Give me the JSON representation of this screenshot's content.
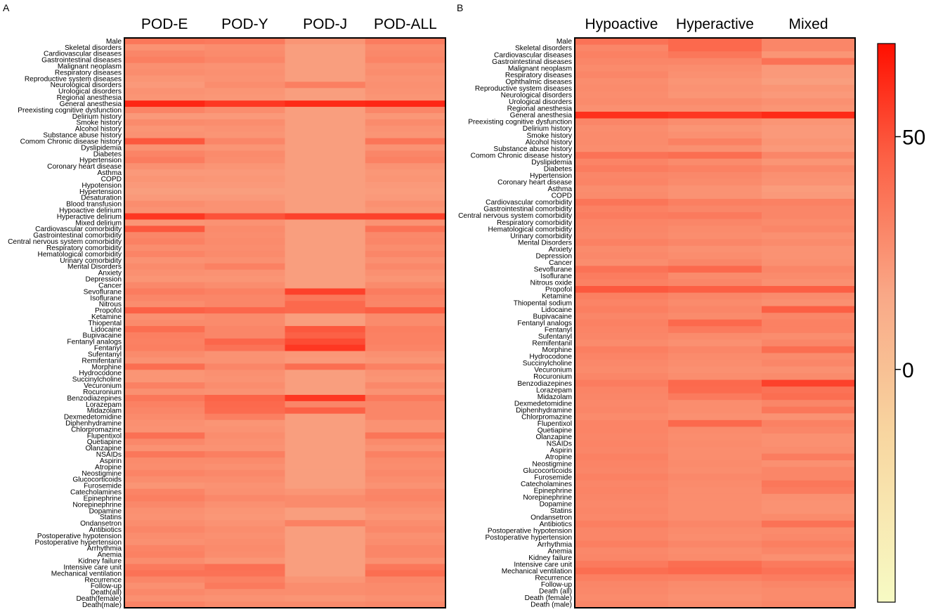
{
  "chart_data": [
    {
      "type": "heatmap",
      "panel_label": "A",
      "columns": [
        "POD-E",
        "POD-Y",
        "POD-J",
        "POD-ALL"
      ],
      "rows": [
        "Male",
        "Skeletal disorders",
        "Cardiovascular diseases",
        "Gastrointestinal diseases",
        "Malignant neoplasm",
        "Respiratory diseases",
        "Reproductive system diseases",
        "Neurological disorders",
        "Urological disorders",
        "Regional anesthesia",
        "General anesthesia",
        "Preexisting cognitive dysfunction",
        "Delirium history",
        "Smoke history",
        "Alcohol history",
        "Substance abuse history",
        "Comom Chronic disease history",
        "Dyslipidemia",
        "Diabetes",
        "Hypertension",
        "Coronary heart disease",
        "Asthma",
        "COPD",
        "Hypotension",
        "Hypertension",
        "Desaturation",
        "Blood transfusion",
        "Hypoactive delirium",
        "Hyperactive delirium",
        "Mixed delirium",
        "Cardiovascular comorbidity",
        "Gastrointestinal comorbidity",
        "Central nervous system comorbidity",
        "Respiratory comorbidity",
        "Hematological comorbidity",
        "Urinary comorbidity",
        "Mental Disorders",
        "Anxiety",
        "Depression",
        "Cancer",
        "Sevoflurane",
        "Isoflurane",
        "Nitrous",
        "Propofol",
        "Ketamine",
        "Thiopental",
        "Lidocaine",
        "Bupivacaine",
        "Fentanyl analogs",
        "Fentanyl",
        "Sufentanyl",
        "Remifentanil",
        "Morphine",
        "Hydrocodone",
        "Succinylcholine",
        "Vecuronium",
        "Rocuronium",
        "Benzodiazepines",
        "Lorazepam",
        "Midazolam",
        "Dexmedetomidine",
        "Diphenhydramine",
        "Chlorpromazine",
        "Flupentixol",
        "Quetiapine",
        "Olanzapine",
        "NSAIDs",
        "Aspirin",
        "Atropine",
        "Neostigmine",
        "Glucocorticoids",
        "Furosemide",
        "Catecholamines",
        "Epinephrine",
        "Norepinephrine",
        "Dopamine",
        "Statins",
        "Ondansetron",
        "Antibiotics",
        "Postoperative hypotension",
        "Postoperative hypertension",
        "Arrhythmia",
        "Anemia",
        "Kidney failure",
        "Intensive care unit",
        "Mechanical ventilation",
        "Recurrence",
        "Follow-up",
        "Death(all)",
        "Death(female)",
        "Death(male)"
      ],
      "values": [
        [
          36,
          35,
          24,
          34
        ],
        [
          25,
          27,
          20,
          28
        ],
        [
          30,
          28,
          20,
          29
        ],
        [
          33,
          30,
          20,
          31
        ],
        [
          26,
          25,
          20,
          26
        ],
        [
          27,
          26,
          20,
          27
        ],
        [
          24,
          25,
          20,
          25
        ],
        [
          22,
          27,
          33,
          26
        ],
        [
          25,
          24,
          20,
          25
        ],
        [
          24,
          23,
          20,
          24
        ],
        [
          63,
          58,
          62,
          63
        ],
        [
          31,
          27,
          20,
          30
        ],
        [
          22,
          22,
          20,
          23
        ],
        [
          28,
          27,
          20,
          28
        ],
        [
          24,
          25,
          20,
          25
        ],
        [
          25,
          24,
          20,
          24
        ],
        [
          48,
          30,
          20,
          37
        ],
        [
          25,
          24,
          20,
          25
        ],
        [
          31,
          28,
          20,
          30
        ],
        [
          34,
          27,
          20,
          32
        ],
        [
          26,
          24,
          20,
          25
        ],
        [
          22,
          22,
          20,
          23
        ],
        [
          24,
          23,
          20,
          24
        ],
        [
          22,
          22,
          20,
          22
        ],
        [
          20,
          20,
          20,
          21
        ],
        [
          22,
          22,
          20,
          22
        ],
        [
          27,
          25,
          20,
          26
        ],
        [
          25,
          25,
          20,
          24
        ],
        [
          58,
          50,
          55,
          55
        ],
        [
          24,
          25,
          20,
          25
        ],
        [
          48,
          28,
          20,
          38
        ],
        [
          30,
          27,
          20,
          29
        ],
        [
          32,
          28,
          20,
          30
        ],
        [
          27,
          27,
          20,
          27
        ],
        [
          31,
          28,
          20,
          30
        ],
        [
          25,
          26,
          20,
          26
        ],
        [
          28,
          32,
          20,
          29
        ],
        [
          26,
          25,
          20,
          26
        ],
        [
          24,
          24,
          20,
          24
        ],
        [
          29,
          27,
          20,
          28
        ],
        [
          34,
          32,
          55,
          34
        ],
        [
          30,
          30,
          36,
          31
        ],
        [
          27,
          30,
          42,
          30
        ],
        [
          45,
          43,
          42,
          46
        ],
        [
          26,
          28,
          20,
          28
        ],
        [
          28,
          28,
          20,
          28
        ],
        [
          40,
          30,
          48,
          33
        ],
        [
          33,
          30,
          45,
          32
        ],
        [
          32,
          43,
          52,
          32
        ],
        [
          33,
          38,
          58,
          31
        ],
        [
          28,
          25,
          23,
          26
        ],
        [
          25,
          25,
          22,
          24
        ],
        [
          40,
          30,
          40,
          32
        ],
        [
          24,
          26,
          20,
          25
        ],
        [
          24,
          25,
          20,
          24
        ],
        [
          32,
          27,
          20,
          29
        ],
        [
          26,
          25,
          20,
          25
        ],
        [
          36,
          44,
          58,
          35
        ],
        [
          32,
          42,
          30,
          30
        ],
        [
          30,
          41,
          45,
          30
        ],
        [
          28,
          33,
          20,
          30
        ],
        [
          26,
          24,
          20,
          25
        ],
        [
          25,
          25,
          20,
          25
        ],
        [
          39,
          27,
          20,
          37
        ],
        [
          29,
          26,
          20,
          28
        ],
        [
          25,
          25,
          20,
          25
        ],
        [
          36,
          33,
          20,
          32
        ],
        [
          28,
          28,
          20,
          28
        ],
        [
          27,
          26,
          20,
          27
        ],
        [
          31,
          29,
          20,
          29
        ],
        [
          27,
          27,
          20,
          27
        ],
        [
          24,
          25,
          20,
          25
        ],
        [
          31,
          26,
          24,
          30
        ],
        [
          33,
          29,
          28,
          31
        ],
        [
          29,
          26,
          28,
          28
        ],
        [
          26,
          24,
          20,
          26
        ],
        [
          25,
          23,
          20,
          24
        ],
        [
          27,
          25,
          32,
          27
        ],
        [
          30,
          27,
          20,
          29
        ],
        [
          27,
          26,
          20,
          26
        ],
        [
          26,
          27,
          20,
          27
        ],
        [
          31,
          28,
          20,
          30
        ],
        [
          32,
          27,
          20,
          30
        ],
        [
          27,
          24,
          20,
          26
        ],
        [
          35,
          39,
          20,
          36
        ],
        [
          38,
          38,
          20,
          40
        ],
        [
          30,
          32,
          24,
          30
        ],
        [
          26,
          35,
          27,
          28
        ],
        [
          29,
          27,
          27,
          28
        ],
        [
          26,
          25,
          24,
          26
        ],
        [
          31,
          28,
          28,
          29
        ]
      ]
    },
    {
      "type": "heatmap",
      "panel_label": "B",
      "columns": [
        "Hypoactive",
        "Hyperactive",
        "Mixed"
      ],
      "rows": [
        "Male",
        "Skeletal disorders",
        "Cardiovascular diseases",
        "Gastrointestinal diseases",
        "Malignant neoplasm",
        "Respiratory diseases",
        "Ophthalmic diseases",
        "Reproductive system diseases",
        "Neurological disorders",
        "Urological disorders",
        "Regional anesthesia",
        "General anesthesia",
        "Preexisting cognitive dysfunction",
        "Delirium history",
        "Smoke history",
        "Alcohol history",
        "Substance abuse history",
        "Comom Chronic disease history",
        "Dyslipidemia",
        "Diabetes",
        "Hypertension",
        "Coronary heart disease",
        "Asthma",
        "COPD",
        "Cardiovascular comorbidity",
        "Gastrointestinal comorbidity",
        "Central nervous system comorbidity",
        "Respiratory comorbidity",
        "Hematological comorbidity",
        "Urinary comorbidity",
        "Mental Disorders",
        "Anxiety",
        "Depression",
        "Cancer",
        "Sevoflurane",
        "Isoflurane",
        "Nitrous oxide",
        "Propofol",
        "Ketamine",
        "Thiopental sodium",
        "Lidocaine",
        "Bupivacaine",
        "Fentanyl analogs",
        "Fentanyl",
        "Sufentanyl",
        "Remifentanil",
        "Morphine",
        "Hydrocodone",
        "Succinylcholine",
        "Vecuronium",
        "Rocuronium",
        "Benzodiazepines",
        "Lorazepam",
        "Midazolam",
        "Dexmedetomidine",
        "Diphenhydramine",
        "Chlorpromazine",
        "Flupentixol",
        "Quetiapine",
        "Olanzapine",
        "NSAIDs",
        "Aspirin",
        "Atropine",
        "Neostigmine",
        "Glucocorticoids",
        "Furosemide",
        "Catecholamines",
        "Epinephrine",
        "Norepinephrine",
        "Dopamine",
        "Statins",
        "Ondansetron",
        "Antibiotics",
        "Postoperative hypotension",
        "Postoperative hypertension",
        "Arrhythmia",
        "Anemia",
        "Kidney failure",
        "Intensive care unit",
        "Mechanical ventilation",
        "Recurrence",
        "Follow-up",
        "Death (all)",
        "Death (female)",
        "Death (male)"
      ],
      "values": [
        [
          38,
          42,
          30
        ],
        [
          30,
          42,
          30
        ],
        [
          32,
          36,
          24
        ],
        [
          30,
          30,
          38
        ],
        [
          28,
          27,
          22
        ],
        [
          30,
          26,
          22
        ],
        [
          27,
          24,
          20
        ],
        [
          28,
          25,
          24
        ],
        [
          27,
          24,
          22
        ],
        [
          28,
          28,
          26
        ],
        [
          26,
          26,
          24
        ],
        [
          60,
          58,
          62
        ],
        [
          30,
          27,
          24
        ],
        [
          27,
          24,
          22
        ],
        [
          28,
          26,
          22
        ],
        [
          28,
          32,
          24
        ],
        [
          27,
          26,
          22
        ],
        [
          38,
          40,
          30
        ],
        [
          31,
          28,
          24
        ],
        [
          34,
          32,
          29
        ],
        [
          30,
          29,
          26
        ],
        [
          31,
          28,
          25
        ],
        [
          27,
          25,
          21
        ],
        [
          28,
          25,
          22
        ],
        [
          37,
          33,
          32
        ],
        [
          32,
          30,
          30
        ],
        [
          34,
          35,
          30
        ],
        [
          31,
          30,
          28
        ],
        [
          30,
          28,
          30
        ],
        [
          29,
          27,
          26
        ],
        [
          32,
          30,
          28
        ],
        [
          28,
          26,
          25
        ],
        [
          29,
          27,
          25
        ],
        [
          27,
          30,
          26
        ],
        [
          38,
          42,
          30
        ],
        [
          34,
          28,
          28
        ],
        [
          32,
          30,
          26
        ],
        [
          48,
          46,
          46
        ],
        [
          33,
          30,
          28
        ],
        [
          31,
          28,
          26
        ],
        [
          33,
          30,
          46
        ],
        [
          30,
          28,
          30
        ],
        [
          32,
          42,
          32
        ],
        [
          31,
          35,
          32
        ],
        [
          30,
          28,
          27
        ],
        [
          28,
          26,
          30
        ],
        [
          33,
          30,
          40
        ],
        [
          31,
          28,
          28
        ],
        [
          29,
          27,
          30
        ],
        [
          28,
          26,
          26
        ],
        [
          30,
          27,
          28
        ],
        [
          34,
          42,
          55
        ],
        [
          31,
          41,
          38
        ],
        [
          30,
          35,
          40
        ],
        [
          29,
          27,
          30
        ],
        [
          30,
          27,
          36
        ],
        [
          28,
          26,
          25
        ],
        [
          31,
          42,
          32
        ],
        [
          31,
          28,
          30
        ],
        [
          30,
          27,
          26
        ],
        [
          31,
          28,
          26
        ],
        [
          30,
          27,
          27
        ],
        [
          32,
          27,
          34
        ],
        [
          31,
          28,
          26
        ],
        [
          30,
          27,
          30
        ],
        [
          32,
          29,
          30
        ],
        [
          30,
          28,
          36
        ],
        [
          31,
          27,
          34
        ],
        [
          30,
          27,
          26
        ],
        [
          29,
          27,
          25
        ],
        [
          30,
          27,
          25
        ],
        [
          29,
          27,
          28
        ],
        [
          33,
          30,
          38
        ],
        [
          30,
          28,
          28
        ],
        [
          30,
          27,
          29
        ],
        [
          33,
          30,
          33
        ],
        [
          29,
          27,
          30
        ],
        [
          30,
          28,
          26
        ],
        [
          35,
          40,
          35
        ],
        [
          40,
          42,
          38
        ],
        [
          33,
          32,
          34
        ],
        [
          30,
          28,
          30
        ],
        [
          29,
          27,
          28
        ],
        [
          28,
          26,
          28
        ],
        [
          30,
          28,
          30
        ]
      ]
    }
  ],
  "colorbar": {
    "ticks": [
      50,
      0
    ],
    "min": -50,
    "max": 70,
    "color_low": "#f7fbc4",
    "color_high": "#ff0f00"
  }
}
